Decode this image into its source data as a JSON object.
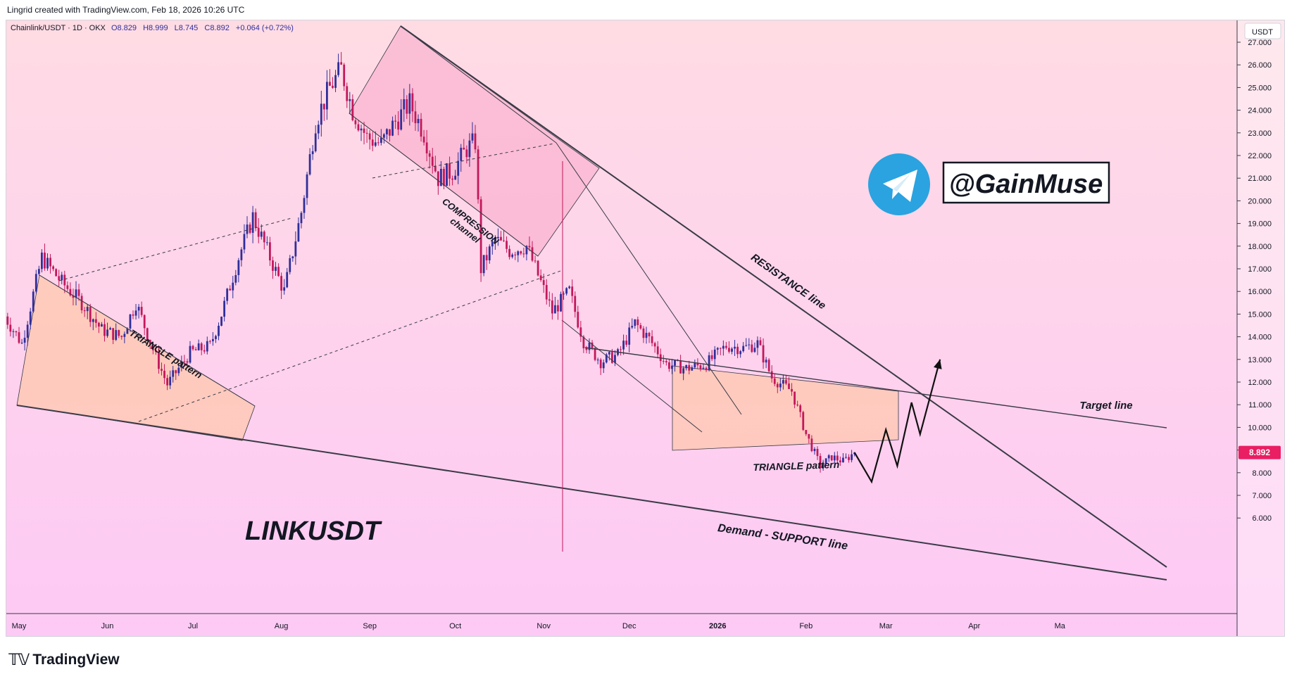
{
  "header": {
    "credit": "Lingrid created with TradingView.com, Feb 18, 2026 10:26 UTC"
  },
  "symbol_info": {
    "label": "Chainlink/USDT · 1D · OKX",
    "open": "O8.829",
    "high": "H8.999",
    "low": "L8.745",
    "close": "C8.892",
    "change": "+0.064 (+0.72%)"
  },
  "price_axis": {
    "currency": "USDT",
    "last_price": "8.892"
  },
  "brand": {
    "name": "TradingView"
  },
  "overlay": {
    "ticker_label": "LINKUSDT",
    "handle": "@GainMuse",
    "telegram_icon": "telegram-icon"
  },
  "annotations": {
    "triangle_left": "TRIANGLE pattern",
    "compression_line1": "COMPRESSION",
    "compression_line2": "channel",
    "resistance": "RESISTANCE line",
    "triangle_right": "TRIANGLE pattern",
    "target": "Target line",
    "support": "Demand - SUPPORT line"
  },
  "colors": {
    "up": "#2f2f9a",
    "down": "#c2185b",
    "bg_top": "#ffdce4",
    "bg_bottom": "#fdc9f5",
    "zone_fill": "#ffc6a5",
    "channel_fill": "#f8a8c8",
    "line": "#3a3a46",
    "price_tag": "#e91e63",
    "telegram": "#2aa3e0"
  },
  "chart_data": {
    "type": "candlestick",
    "title": "Chainlink/USDT · 1D · OKX",
    "ylim": [
      5.4,
      27.6
    ],
    "y_ticks": [
      6,
      7,
      8,
      9,
      10,
      11,
      12,
      13,
      14,
      15,
      16,
      17,
      18,
      19,
      20,
      21,
      22,
      23,
      24,
      25,
      26,
      27
    ],
    "x_ticks": [
      "May",
      "Jun",
      "Jul",
      "Aug",
      "Sep",
      "Oct",
      "Nov",
      "Dec",
      "2026",
      "Feb",
      "Mar",
      "Apr",
      "Ma"
    ],
    "close_path": [
      [
        "2025-04-26",
        14.9
      ],
      [
        "2025-05-02",
        13.7
      ],
      [
        "2025-05-09",
        17.5
      ],
      [
        "2025-05-16",
        16.4
      ],
      [
        "2025-05-23",
        15.5
      ],
      [
        "2025-05-30",
        14.3
      ],
      [
        "2025-06-06",
        14.0
      ],
      [
        "2025-06-11",
        15.5
      ],
      [
        "2025-06-18",
        13.1
      ],
      [
        "2025-06-22",
        11.9
      ],
      [
        "2025-06-30",
        13.3
      ],
      [
        "2025-07-07",
        13.6
      ],
      [
        "2025-07-11",
        15.0
      ],
      [
        "2025-07-17",
        17.5
      ],
      [
        "2025-07-22",
        19.3
      ],
      [
        "2025-07-27",
        17.8
      ],
      [
        "2025-08-02",
        16.0
      ],
      [
        "2025-08-08",
        19.5
      ],
      [
        "2025-08-13",
        23.5
      ],
      [
        "2025-08-18",
        25.0
      ],
      [
        "2025-08-22",
        25.8
      ],
      [
        "2025-08-26",
        24.0
      ],
      [
        "2025-08-31",
        22.8
      ],
      [
        "2025-09-05",
        22.5
      ],
      [
        "2025-09-10",
        23.5
      ],
      [
        "2025-09-15",
        24.3
      ],
      [
        "2025-09-20",
        23.0
      ],
      [
        "2025-09-25",
        21.0
      ],
      [
        "2025-09-30",
        21.3
      ],
      [
        "2025-10-05",
        22.3
      ],
      [
        "2025-10-08",
        22.6
      ],
      [
        "2025-10-10",
        17.0
      ],
      [
        "2025-10-15",
        18.3
      ],
      [
        "2025-10-20",
        17.8
      ],
      [
        "2025-10-26",
        18.0
      ],
      [
        "2025-10-31",
        16.4
      ],
      [
        "2025-11-04",
        15.1
      ],
      [
        "2025-11-10",
        16.0
      ],
      [
        "2025-11-15",
        13.8
      ],
      [
        "2025-11-21",
        12.9
      ],
      [
        "2025-11-27",
        13.2
      ],
      [
        "2025-12-03",
        14.6
      ],
      [
        "2025-12-08",
        13.9
      ],
      [
        "2025-12-14",
        12.8
      ],
      [
        "2025-12-21",
        12.6
      ],
      [
        "2025-12-28",
        12.8
      ],
      [
        "2026-01-04",
        13.6
      ],
      [
        "2026-01-10",
        13.5
      ],
      [
        "2026-01-15",
        13.7
      ],
      [
        "2026-01-20",
        12.2
      ],
      [
        "2026-01-27",
        11.6
      ],
      [
        "2026-02-01",
        9.7
      ],
      [
        "2026-02-06",
        8.3
      ],
      [
        "2026-02-10",
        8.7
      ],
      [
        "2026-02-14",
        8.5
      ],
      [
        "2026-02-18",
        8.892
      ]
    ],
    "last_ohlc": {
      "open": 8.829,
      "high": 8.999,
      "low": 8.745,
      "close": 8.892,
      "change": 0.064,
      "change_pct": 0.72
    },
    "projection": [
      [
        "2026-02-18",
        8.892
      ],
      [
        "2026-02-24",
        7.6
      ],
      [
        "2026-03-01",
        9.9
      ],
      [
        "2026-03-05",
        8.3
      ],
      [
        "2026-03-10",
        11.1
      ],
      [
        "2026-03-13",
        9.7
      ],
      [
        "2026-03-20",
        13.0
      ]
    ],
    "lines": [
      {
        "name": "RESISTANCE line",
        "from": [
          "2025-08-21",
          27.8
        ],
        "to": [
          "2026-04-10",
          7.2
        ]
      },
      {
        "name": "Demand - SUPPORT line",
        "from": [
          "2025-04-29",
          13.3
        ],
        "to": [
          "2026-04-10",
          6.7
        ]
      },
      {
        "name": "Target line",
        "from": [
          "2025-10-15",
          15.7
        ],
        "to": [
          "2026-04-10",
          12.6
        ]
      }
    ]
  }
}
